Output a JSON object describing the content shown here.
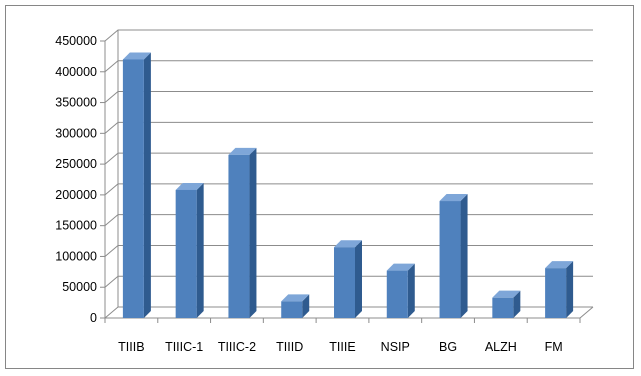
{
  "chart_data": {
    "type": "bar",
    "title": "",
    "xlabel": "",
    "ylabel": "",
    "categories": [
      "TIIIB",
      "TIIIC-1",
      "TIIIC-2",
      "TIIID",
      "TIIIE",
      "NSIP",
      "BG",
      "ALZH",
      "FM"
    ],
    "values": [
      420000,
      208000,
      265000,
      27000,
      115000,
      77000,
      190000,
      33000,
      81000
    ],
    "ylim": [
      0,
      450000
    ],
    "yticks": [
      "0",
      "50000",
      "100000",
      "150000",
      "200000",
      "250000",
      "300000",
      "350000",
      "400000",
      "450000"
    ],
    "grid": true,
    "legend": "none",
    "bar_style": "3d",
    "colors": {
      "bar_front": "#4f81bd",
      "bar_side": "#2f5b8f",
      "bar_top": "#7ea6d8",
      "grid": "#8c8c8c"
    }
  }
}
